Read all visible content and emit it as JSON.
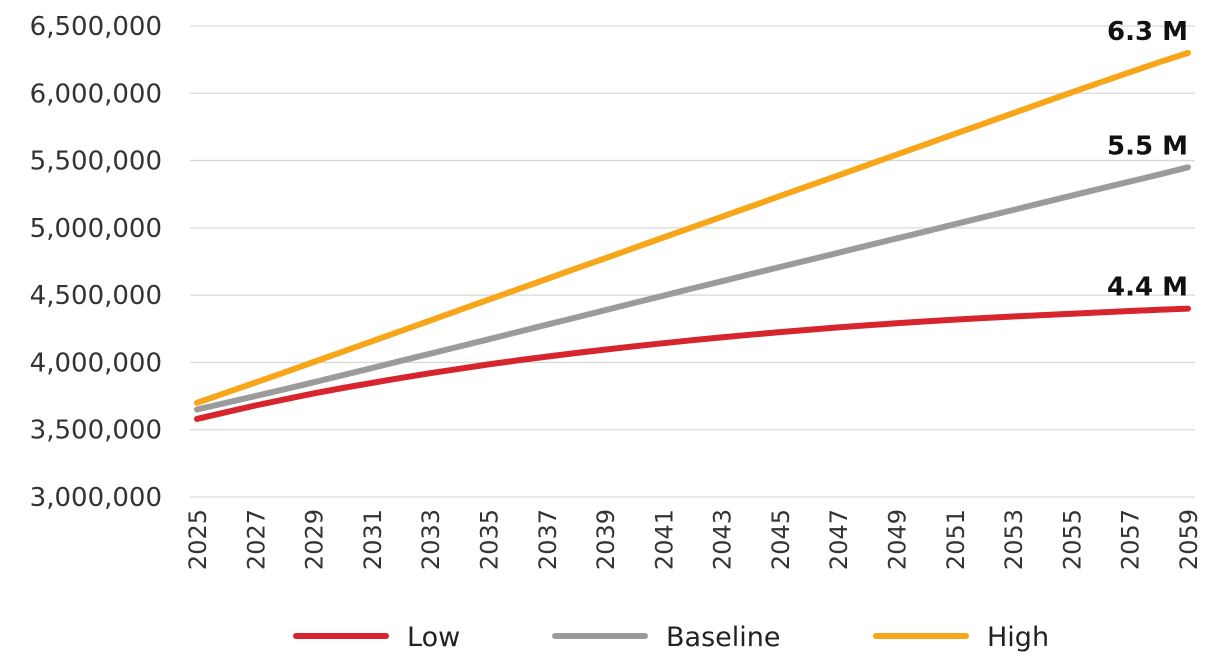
{
  "chart_data": {
    "type": "line",
    "title": "",
    "xlabel": "",
    "ylabel": "",
    "x": [
      2025,
      2026,
      2027,
      2028,
      2029,
      2030,
      2031,
      2032,
      2033,
      2034,
      2035,
      2036,
      2037,
      2038,
      2039,
      2040,
      2041,
      2042,
      2043,
      2044,
      2045,
      2046,
      2047,
      2048,
      2049,
      2050,
      2051,
      2052,
      2053,
      2054,
      2055,
      2056,
      2057,
      2058,
      2059
    ],
    "x_tick_labels": [
      "2025",
      "2027",
      "2029",
      "2031",
      "2033",
      "2035",
      "2037",
      "2039",
      "2041",
      "2043",
      "2045",
      "2047",
      "2049",
      "2051",
      "2053",
      "2055",
      "2057",
      "2059"
    ],
    "y_tick_labels": [
      "3,000,000",
      "3,500,000",
      "4,000,000",
      "4,500,000",
      "5,000,000",
      "5,500,000",
      "6,000,000",
      "6,500,000"
    ],
    "y_ticks": [
      3000000,
      3500000,
      4000000,
      4500000,
      5000000,
      5500000,
      6000000,
      6500000
    ],
    "ylim": [
      3000000,
      6500000
    ],
    "grid": true,
    "legend_position": "bottom",
    "series": [
      {
        "name": "Low",
        "color": "#d6252c",
        "end_label": "4.4 M",
        "values": [
          3580000,
          3630000,
          3680000,
          3725000,
          3770000,
          3810000,
          3848000,
          3885000,
          3920000,
          3953000,
          3985000,
          4015000,
          4043000,
          4070000,
          4095000,
          4120000,
          4143000,
          4165000,
          4186000,
          4206000,
          4225000,
          4243000,
          4260000,
          4276000,
          4291000,
          4305000,
          4318000,
          4330000,
          4341000,
          4352000,
          4362000,
          4372000,
          4382000,
          4391000,
          4400000
        ]
      },
      {
        "name": "Baseline",
        "color": "#9b9b9b",
        "end_label": "5.5 M",
        "values": [
          3650000,
          3700000,
          3750000,
          3800000,
          3852000,
          3905000,
          3958000,
          4012000,
          4065000,
          4118000,
          4172000,
          4226000,
          4280000,
          4334000,
          4388000,
          4442000,
          4496000,
          4550000,
          4603000,
          4656000,
          4709000,
          4762000,
          4815000,
          4868000,
          4921000,
          4974000,
          5027000,
          5080000,
          5133000,
          5186000,
          5239000,
          5292000,
          5344000,
          5396000,
          5450000
        ]
      },
      {
        "name": "High",
        "color": "#f7a619",
        "end_label": "6.3 M",
        "values": [
          3700000,
          3775000,
          3850000,
          3926000,
          4003000,
          4080000,
          4157000,
          4234000,
          4311000,
          4389000,
          4466000,
          4543000,
          4620000,
          4697000,
          4774000,
          4851000,
          4928000,
          5005000,
          5082000,
          5159000,
          5236000,
          5313000,
          5390000,
          5467000,
          5544000,
          5621000,
          5698000,
          5775000,
          5852000,
          5929000,
          6006000,
          6082000,
          6156000,
          6230000,
          6300000
        ]
      }
    ]
  }
}
